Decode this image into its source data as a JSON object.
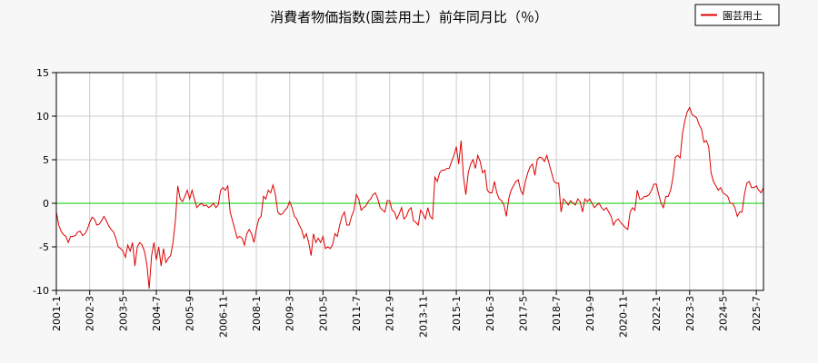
{
  "chart_data": {
    "type": "line",
    "title": "消費者物価指数(園芸用土）前年同月比（％）",
    "categories": [
      "2001-1",
      null,
      null,
      null,
      null,
      null,
      null,
      null,
      null,
      null,
      null,
      null,
      null,
      null,
      "2002-3",
      null,
      null,
      null,
      null,
      null,
      null,
      null,
      null,
      null,
      null,
      null,
      null,
      null,
      "2003-5",
      null,
      null,
      null,
      null,
      null,
      null,
      null,
      null,
      null,
      null,
      null,
      null,
      null,
      "2004-7",
      null,
      null,
      null,
      null,
      null,
      null,
      null,
      null,
      null,
      null,
      null,
      null,
      null,
      "2005-9",
      null,
      null,
      null,
      null,
      null,
      null,
      null,
      null,
      null,
      null,
      null,
      null,
      null,
      "2006-11",
      null,
      null,
      null,
      null,
      null,
      null,
      null,
      null,
      null,
      null,
      null,
      null,
      null,
      "2008-1",
      null,
      null,
      null,
      null,
      null,
      null,
      null,
      null,
      null,
      null,
      null,
      null,
      null,
      "2009-3",
      null,
      null,
      null,
      null,
      null,
      null,
      null,
      null,
      null,
      null,
      null,
      null,
      null,
      "2010-5",
      null,
      null,
      null,
      null,
      null,
      null,
      null,
      null,
      null,
      null,
      null,
      null,
      null,
      "2011-7",
      null,
      null,
      null,
      null,
      null,
      null,
      null,
      null,
      null,
      null,
      null,
      null,
      null,
      "2012-9",
      null,
      null,
      null,
      null,
      null,
      null,
      null,
      null,
      null,
      null,
      null,
      null,
      null,
      "2013-11",
      null,
      null,
      null,
      null,
      null,
      null,
      null,
      null,
      null,
      null,
      null,
      null,
      null,
      "2015-1",
      null,
      null,
      null,
      null,
      null,
      null,
      null,
      null,
      null,
      null,
      null,
      null,
      null,
      "2016-3",
      null,
      null,
      null,
      null,
      null,
      null,
      null,
      null,
      null,
      null,
      null,
      null,
      null,
      "2017-5",
      null,
      null,
      null,
      null,
      null,
      null,
      null,
      null,
      null,
      null,
      null,
      null,
      null,
      "2018-7",
      null,
      null,
      null,
      null,
      null,
      null,
      null,
      null,
      null,
      null,
      null,
      null,
      null,
      "2019-9",
      null,
      null,
      null,
      null,
      null,
      null,
      null,
      null,
      null,
      null,
      null,
      null,
      null,
      "2020-11",
      null,
      null,
      null,
      null,
      null,
      null,
      null,
      null,
      null,
      null,
      null,
      null,
      null,
      "2022-1",
      null,
      null,
      null,
      null,
      null,
      null,
      null,
      null,
      null,
      null,
      null,
      null,
      null,
      "2023-3",
      null,
      null,
      null,
      null,
      null,
      null,
      null,
      null,
      null,
      null,
      null,
      null,
      null,
      "2024-5",
      null,
      null,
      null,
      null,
      null,
      null,
      null,
      null,
      null,
      null,
      null,
      null,
      null,
      "2025-7",
      null,
      null,
      null
    ],
    "series": [
      {
        "name": "園芸用土",
        "color": "#dd0000",
        "values": [
          -1,
          -2.5,
          -3.2,
          -3.6,
          -3.8,
          -4.5,
          -3.8,
          -3.8,
          -3.7,
          -3.3,
          -3.2,
          -3.7,
          -3.5,
          -3,
          -2.2,
          -1.6,
          -1.8,
          -2.5,
          -2.4,
          -2,
          -1.5,
          -2,
          -2.6,
          -3,
          -3.3,
          -4,
          -5,
          -5.2,
          -5.5,
          -6.2,
          -4.8,
          -5.5,
          -4.5,
          -7.2,
          -5,
          -4.5,
          -4.8,
          -5.5,
          -7,
          -9.8,
          -6,
          -4.5,
          -6.5,
          -5,
          -7.2,
          -5.2,
          -6.8,
          -6.3,
          -6,
          -4.5,
          -2,
          2,
          0.5,
          0.2,
          0.8,
          1.5,
          0.5,
          1.5,
          0.5,
          -0.5,
          -0.2,
          0,
          -0.3,
          -0.2,
          -0.5,
          -0.3,
          0,
          -0.5,
          -0.2,
          1.5,
          1.8,
          1.5,
          2,
          -1,
          -2,
          -3,
          -4,
          -3.8,
          -4,
          -4.8,
          -3.5,
          -3,
          -3.5,
          -4.5,
          -3,
          -1.8,
          -1.5,
          0.8,
          0.5,
          1.5,
          1.2,
          2.1,
          1,
          -1,
          -1.3,
          -1.2,
          -0.8,
          -0.5,
          0.2,
          -0.5,
          -1.5,
          -1.8,
          -2.5,
          -3,
          -4,
          -3.5,
          -4.5,
          -6,
          -3.5,
          -4.5,
          -4,
          -4.5,
          -3.8,
          -5.2,
          -5,
          -5.2,
          -4.8,
          -3.5,
          -3.8,
          -2.5,
          -1.5,
          -1,
          -2.5,
          -2.5,
          -1.5,
          -0.8,
          1,
          0.5,
          -0.8,
          -0.5,
          -0.3,
          0.2,
          0.5,
          1,
          1.2,
          0.5,
          -0.5,
          -0.8,
          -1,
          0.3,
          0.3,
          -0.8,
          -1,
          -1.8,
          -1.2,
          -0.5,
          -1.8,
          -1.5,
          -0.8,
          -0.5,
          -2,
          -2.2,
          -2.5,
          -0.8,
          -1.2,
          -1.8,
          -0.5,
          -1.5,
          -1.8,
          3,
          2.5,
          3.5,
          3.8,
          3.8,
          4,
          4,
          4.8,
          5.5,
          6.5,
          4.5,
          7.2,
          3,
          1,
          3.5,
          4.5,
          5,
          4,
          5.5,
          4.8,
          3.5,
          3.8,
          1.5,
          1.2,
          1.2,
          2.5,
          1.2,
          0.5,
          0.3,
          -0.2,
          -1.5,
          0.5,
          1.5,
          2,
          2.5,
          2.7,
          1.5,
          1,
          2.5,
          3.5,
          4.2,
          4.5,
          3.2,
          5,
          5.3,
          5.2,
          4.8,
          5.5,
          4.5,
          3.5,
          2.5,
          2.3,
          2.3,
          -1,
          0.5,
          0.2,
          -0.2,
          0.3,
          0,
          -0.2,
          0.5,
          0.2,
          -1,
          0.5,
          0.2,
          0.5,
          0,
          -0.5,
          -0.2,
          0,
          -0.5,
          -0.8,
          -0.5,
          -1,
          -1.5,
          -2.5,
          -2,
          -1.8,
          -2.2,
          -2.5,
          -2.8,
          -3,
          -1,
          -0.5,
          -0.8,
          1.5,
          0.5,
          0.5,
          0.8,
          0.8,
          1,
          1.5,
          2.2,
          2.2,
          1,
          0,
          -0.5,
          0.8,
          0.8,
          1.5,
          3,
          5.3,
          5.5,
          5.2,
          8,
          9.5,
          10.5,
          11,
          10.2,
          10,
          9.8,
          9,
          8.5,
          7,
          7.2,
          6.5,
          3.5,
          2.5,
          2,
          1.5,
          1.8,
          1.2,
          1,
          0.8,
          0,
          0,
          -0.5,
          -1.5,
          -1,
          -1,
          1,
          2.3,
          2.5,
          1.8,
          1.8,
          2,
          1.5,
          1.2,
          1.8
        ]
      }
    ],
    "ylim": [
      -10,
      15
    ],
    "yticks": [
      -10,
      -5,
      0,
      5,
      10,
      15
    ],
    "grid": true,
    "reference_lines": [
      {
        "value": 0,
        "color": "#00cc00"
      }
    ],
    "legend": "top-right"
  }
}
